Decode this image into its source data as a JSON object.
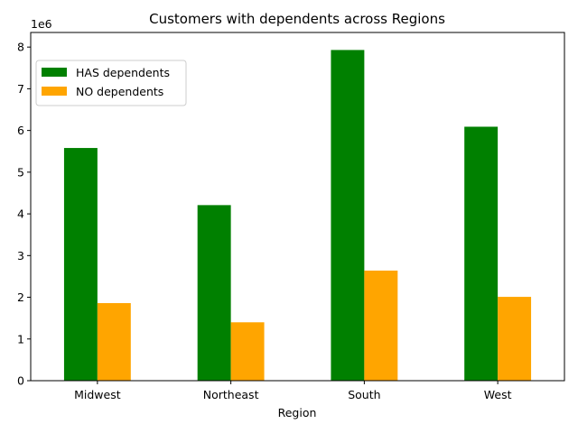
{
  "chart_data": {
    "type": "bar",
    "title": "Customers with dependents across Regions",
    "xlabel": "Region",
    "ylabel": "",
    "y_offset_label": "1e6",
    "categories": [
      "Midwest",
      "Northeast",
      "South",
      "West"
    ],
    "series": [
      {
        "name": "HAS dependents",
        "color": "#008000",
        "values": [
          5580000,
          4210000,
          7930000,
          6090000
        ]
      },
      {
        "name": "NO dependents",
        "color": "#FFA500",
        "values": [
          1860000,
          1400000,
          2640000,
          2010000
        ]
      }
    ],
    "ylim": [
      0,
      8350000
    ],
    "yticks": [
      0,
      1000000,
      2000000,
      3000000,
      4000000,
      5000000,
      6000000,
      7000000,
      8000000
    ],
    "ytick_labels": [
      "0",
      "1",
      "2",
      "3",
      "4",
      "5",
      "6",
      "7",
      "8"
    ],
    "grid": false,
    "legend_position": "upper-left"
  }
}
